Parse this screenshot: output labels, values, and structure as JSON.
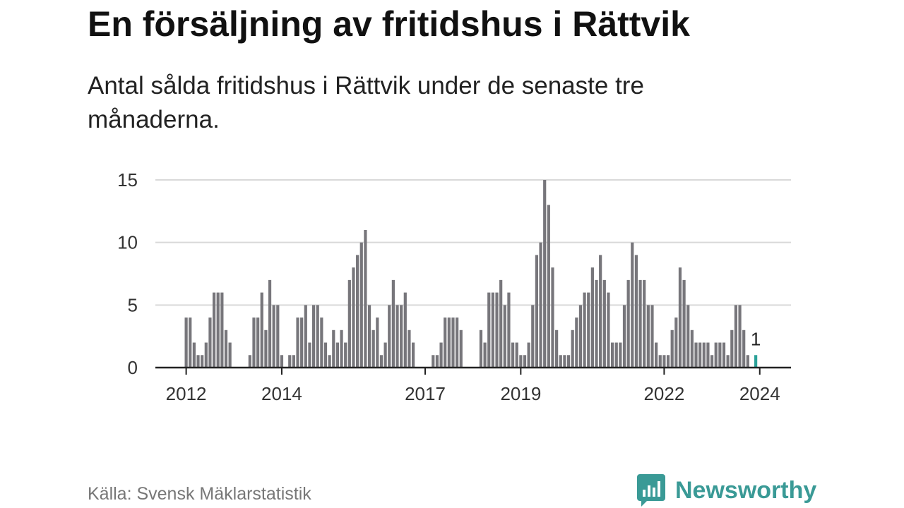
{
  "title": "En försäljning av fritidshus i Rättvik",
  "subtitle": "Antal sålda fritidshus i Rättvik under de senaste tre månaderna.",
  "source": "Källa: Svensk Mäklarstatistik",
  "brand": "Newsworthy",
  "colors": {
    "bar": "#77767b",
    "highlight": "#2aa198",
    "grid": "#d9d9d9",
    "axis": "#222222",
    "brand": "#3a9a96"
  },
  "chart_data": {
    "type": "bar",
    "xlabel": "",
    "ylabel": "",
    "ylim": [
      0,
      15
    ],
    "y_ticks": [
      0,
      5,
      10,
      15
    ],
    "x_tick_labels": [
      "2012",
      "2014",
      "2017",
      "2019",
      "2022",
      "2024"
    ],
    "x_tick_indices": [
      0,
      24,
      60,
      84,
      120,
      144
    ],
    "start_index": -2,
    "values": [
      0,
      0,
      4,
      4,
      2,
      1,
      1,
      2,
      4,
      6,
      6,
      6,
      3,
      2,
      0,
      0,
      0,
      0,
      1,
      4,
      4,
      6,
      3,
      7,
      5,
      5,
      1,
      0,
      1,
      1,
      4,
      4,
      5,
      2,
      5,
      5,
      4,
      2,
      1,
      3,
      2,
      3,
      2,
      7,
      8,
      9,
      10,
      11,
      5,
      3,
      4,
      1,
      2,
      5,
      7,
      5,
      5,
      6,
      3,
      2,
      0,
      0,
      0,
      0,
      1,
      1,
      2,
      4,
      4,
      4,
      4,
      3,
      0,
      0,
      0,
      0,
      3,
      2,
      6,
      6,
      6,
      7,
      5,
      6,
      2,
      2,
      1,
      1,
      2,
      5,
      9,
      10,
      15,
      13,
      8,
      3,
      1,
      1,
      1,
      3,
      4,
      5,
      6,
      6,
      8,
      7,
      9,
      7,
      6,
      2,
      2,
      2,
      5,
      7,
      10,
      9,
      7,
      7,
      5,
      5,
      2,
      1,
      1,
      1,
      3,
      4,
      8,
      7,
      5,
      3,
      2,
      2,
      2,
      2,
      1,
      2,
      2,
      2,
      1,
      3,
      5,
      5,
      3,
      1,
      0,
      1
    ],
    "highlight_index": 145,
    "annotation": {
      "index": 145,
      "text": "1"
    }
  }
}
